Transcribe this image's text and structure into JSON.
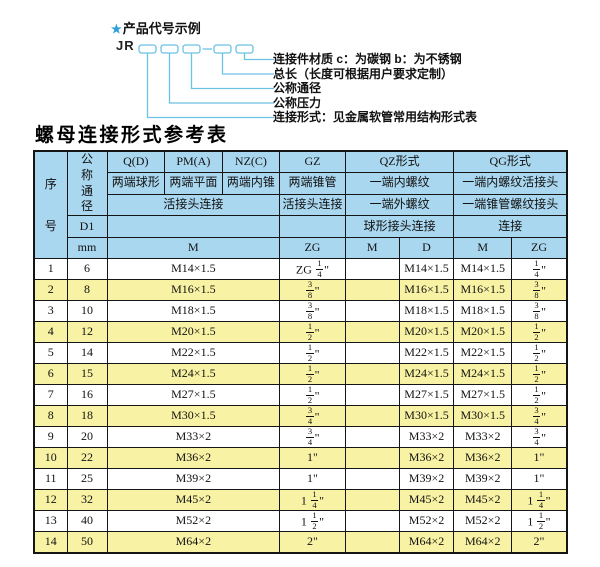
{
  "colors": {
    "header_bg": "#a9d7ef",
    "row_alt_bg": "#f8f2a4",
    "diagram_line": "#6cc2e4",
    "star_blue": "#2a9fd8"
  },
  "diagram": {
    "star": "★",
    "title": "产品代号示例",
    "prefix": "JR",
    "labels": [
      "连接件材质  c：为碳钢  b：为不锈钢",
      "总长（长度可根据用户要求定制）",
      "公称通径",
      "公称压力",
      "连接形式：见金属软管常用结构形式表"
    ]
  },
  "table_title": "螺母连接形式参考表",
  "table": {
    "header": {
      "seq": "序号",
      "nominal_diameter": "公称通径",
      "col_q": "Q(D)",
      "col_pm": "PM(A)",
      "col_nz": "NZ(C)",
      "col_gz": "GZ",
      "col_qz": "QZ形式",
      "col_qg": "QG形式",
      "q_desc": "两端球形",
      "pm_desc": "两端平面",
      "nz_desc": "两端内锥",
      "gz_desc": "两端锥管",
      "qz_desc1": "一端内螺纹",
      "qg_desc1": "一端内螺纹活接头",
      "union_conn": "活接头连接",
      "gz_conn": "活接头连接",
      "qz_desc2": "一端外螺纹",
      "qg_desc2": "一端锥管螺纹接头",
      "d1": "D1",
      "qz_conn": "球形接头连接",
      "qg_conn": "连接",
      "mm": "mm",
      "unit_m": "M",
      "unit_zg": "ZG",
      "qz_unit_m": "M",
      "qz_unit_d": "D",
      "qg_unit_m": "M",
      "qg_unit_zg": "ZG"
    },
    "rows": [
      [
        "1",
        "6",
        "M14×1.5",
        "ZG 1/4\"",
        "",
        "M14×1.5",
        "M14×1.5",
        "1/4\""
      ],
      [
        "2",
        "8",
        "M16×1.5",
        "3/8\"",
        "",
        "M16×1.5",
        "M16×1.5",
        "3/8\""
      ],
      [
        "3",
        "10",
        "M18×1.5",
        "3/8\"",
        "",
        "M18×1.5",
        "M18×1.5",
        "3/8\""
      ],
      [
        "4",
        "12",
        "M20×1.5",
        "1/2\"",
        "",
        "M20×1.5",
        "M20×1.5",
        "1/2\""
      ],
      [
        "5",
        "14",
        "M22×1.5",
        "1/2\"",
        "",
        "M22×1.5",
        "M22×1.5",
        "1/2\""
      ],
      [
        "6",
        "15",
        "M24×1.5",
        "1/2\"",
        "",
        "M24×1.5",
        "M24×1.5",
        "1/2\""
      ],
      [
        "7",
        "16",
        "M27×1.5",
        "1/2\"",
        "",
        "M27×1.5",
        "M27×1.5",
        "1/2\""
      ],
      [
        "8",
        "18",
        "M30×1.5",
        "3/4\"",
        "",
        "M30×1.5",
        "M30×1.5",
        "3/4\""
      ],
      [
        "9",
        "20",
        "M33×2",
        "3/4\"",
        "",
        "M33×2",
        "M33×2",
        "3/4\""
      ],
      [
        "10",
        "22",
        "M36×2",
        "1\"",
        "",
        "M36×2",
        "M36×2",
        "1\""
      ],
      [
        "11",
        "25",
        "M39×2",
        "1\"",
        "",
        "M39×2",
        "M39×2",
        "1\""
      ],
      [
        "12",
        "32",
        "M45×2",
        "1 1/4\"",
        "",
        "M45×2",
        "M45×2",
        "1 1/4\""
      ],
      [
        "13",
        "40",
        "M52×2",
        "1 1/2\"",
        "",
        "M52×2",
        "M52×2",
        "1 1/2\""
      ],
      [
        "14",
        "50",
        "M64×2",
        "2\"",
        "",
        "M64×2",
        "M64×2",
        "2\""
      ]
    ]
  }
}
